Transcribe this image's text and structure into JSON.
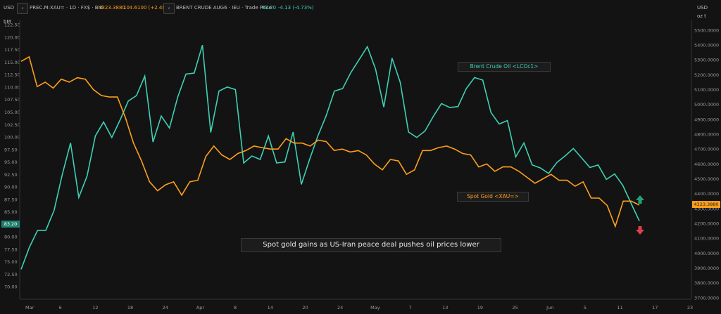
{
  "header": {
    "currency_left": "USD",
    "unit_left": "bM",
    "currency_right": "USD",
    "unit_right": "oz t",
    "gold_symbol": "PREC.M:XAU= · 1D · FX$ · Bid",
    "gold_price": "4323.3880",
    "gold_change": "104.6100 (+2.48%)",
    "brent_symbol": "BRENT CRUDE AUG6 · IEU · Trade Price",
    "brent_price": "83.20",
    "brent_change": "-4.13 (-4.73%)"
  },
  "colors": {
    "gold": "#ff9f1c",
    "brent": "#3fd0b5",
    "up": "#1fa37a",
    "down": "#e0404a"
  },
  "chart_data": {
    "type": "line",
    "title": "Spot gold gains as US-Iran peace deal pushes oil prices lower",
    "x_tick_labels": [
      "Mar",
      "6",
      "12",
      "18",
      "24",
      "Apr",
      "8",
      "14",
      "20",
      "24",
      "May",
      "7",
      "13",
      "19",
      "25",
      "Jun",
      "5",
      "11",
      "17",
      "23"
    ],
    "left_axis": {
      "ylim": [
        67.5,
        123.5
      ],
      "ticks": [
        "122.50",
        "120.00",
        "117.50",
        "115.00",
        "112.50",
        "110.00",
        "107.50",
        "105.00",
        "102.50",
        "100.00",
        "97.50",
        "95.00",
        "92.50",
        "90.00",
        "87.50",
        "85.00",
        "82.50",
        "80.00",
        "77.50",
        "75.00",
        "72.50",
        "70.00"
      ]
    },
    "right_axis": {
      "ylim": [
        3690,
        5570
      ],
      "ticks": [
        "5500.0000",
        "5400.0000",
        "5300.0000",
        "5200.0000",
        "5100.0000",
        "5000.0000",
        "4900.0000",
        "4800.0000",
        "4700.0000",
        "4600.0000",
        "4500.0000",
        "4400.0000",
        "4300.0000",
        "4200.0000",
        "4100.0000",
        "4000.0000",
        "3900.0000",
        "3800.0000",
        "3700.0000"
      ]
    },
    "series": [
      {
        "name": "Brent Crude Oil <LCOc1>",
        "axis": "left",
        "last_value": "83.20",
        "values": [
          73.5,
          77.9,
          81.3,
          81.3,
          85.3,
          92.5,
          98.8,
          87.9,
          92.2,
          100.2,
          103.0,
          99.9,
          103.4,
          107.2,
          108.3,
          112.2,
          99.0,
          104.2,
          101.8,
          108.0,
          112.6,
          112.8,
          118.4,
          100.9,
          109.2,
          110.0,
          109.5,
          94.8,
          96.2,
          95.5,
          100.2,
          94.8,
          95.0,
          101.0,
          90.5,
          95.5,
          100.2,
          104.2,
          109.2,
          109.7,
          112.9,
          115.5,
          118.1,
          113.6,
          106.0,
          115.8,
          110.9,
          101.0,
          99.9,
          101.2,
          104.1,
          106.7,
          105.9,
          106.1,
          109.7,
          111.9,
          111.4,
          104.9,
          102.6,
          103.3,
          96.0,
          98.8,
          94.4,
          93.8,
          92.7,
          94.9,
          96.2,
          97.7,
          95.8,
          93.9,
          94.4,
          91.5,
          92.6,
          90.3,
          86.7,
          83.2
        ]
      },
      {
        "name": "Spot Gold <XAU=>",
        "axis": "right",
        "last_value": "4323.3880",
        "values": [
          5290,
          5320,
          5120,
          5150,
          5110,
          5170,
          5150,
          5180,
          5170,
          5100,
          5060,
          5050,
          5050,
          4910,
          4740,
          4620,
          4480,
          4420,
          4460,
          4480,
          4390,
          4480,
          4490,
          4650,
          4720,
          4660,
          4630,
          4670,
          4690,
          4720,
          4710,
          4700,
          4700,
          4770,
          4740,
          4740,
          4720,
          4760,
          4750,
          4690,
          4700,
          4680,
          4690,
          4660,
          4600,
          4560,
          4630,
          4620,
          4530,
          4560,
          4690,
          4690,
          4710,
          4720,
          4700,
          4670,
          4660,
          4580,
          4600,
          4550,
          4580,
          4580,
          4550,
          4510,
          4470,
          4500,
          4530,
          4490,
          4490,
          4450,
          4480,
          4370,
          4370,
          4320,
          4180,
          4350,
          4350,
          4323
        ]
      }
    ],
    "annotations": [
      "Brent Crude Oil <LCOc1>",
      "Spot Gold <XAU=>"
    ]
  }
}
